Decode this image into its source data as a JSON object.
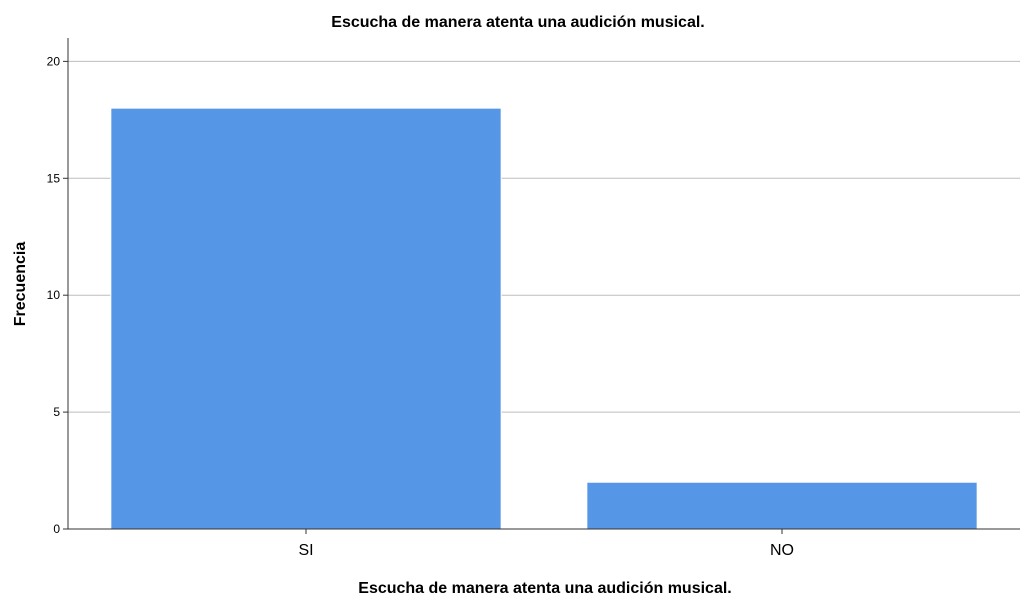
{
  "chart_data": {
    "type": "bar",
    "title": "Escucha de manera atenta una audición musical.",
    "xlabel": "Escucha de manera atenta una audición musical.",
    "ylabel": "Frecuencia",
    "categories": [
      "SI",
      "NO"
    ],
    "values": [
      18,
      2
    ],
    "ylim": [
      0,
      21
    ],
    "yticks": [
      0,
      5,
      10,
      15,
      20
    ],
    "grid": true,
    "bar_color": "#5596e6",
    "grid_color": "#bdbdbd"
  }
}
